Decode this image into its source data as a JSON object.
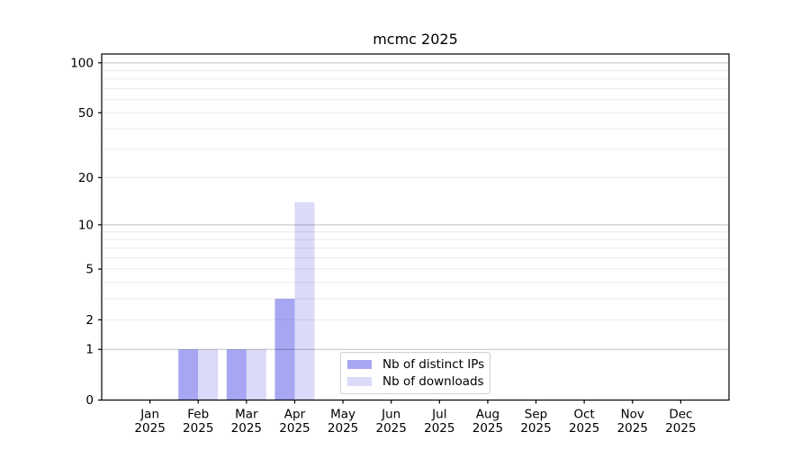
{
  "chart_data": {
    "type": "bar",
    "title": "mcmc 2025",
    "categories": [
      "Jan",
      "Feb",
      "Mar",
      "Apr",
      "May",
      "Jun",
      "Jul",
      "Aug",
      "Sep",
      "Oct",
      "Nov",
      "Dec"
    ],
    "category_year": "2025",
    "series": [
      {
        "name": "Nb of distinct IPs",
        "color": "#a6a6f3",
        "values": [
          0,
          1,
          1,
          3,
          0,
          0,
          0,
          0,
          0,
          0,
          0,
          0
        ]
      },
      {
        "name": "Nb of downloads",
        "color": "#dadaf9",
        "values": [
          0,
          1,
          1,
          14,
          0,
          0,
          0,
          0,
          0,
          0,
          0,
          0
        ]
      }
    ],
    "y_axis": {
      "scale": "log1p",
      "ticks": [
        0,
        1,
        2,
        5,
        10,
        20,
        50,
        100
      ],
      "major_gridlines": [
        1,
        10,
        100
      ],
      "minor_gridlines": [
        2,
        3,
        4,
        5,
        6,
        7,
        8,
        9,
        20,
        30,
        40,
        50,
        60,
        70,
        80,
        90
      ],
      "ylim": [
        0,
        113
      ]
    },
    "grid": true,
    "legend_position": "lower center-left inside plot",
    "colors": {
      "axis": "#000000",
      "major_grid": "rgba(0,0,0,0.25)",
      "minor_grid": "rgba(0,0,0,0.08)",
      "legend_border": "#cfcfcf"
    }
  }
}
